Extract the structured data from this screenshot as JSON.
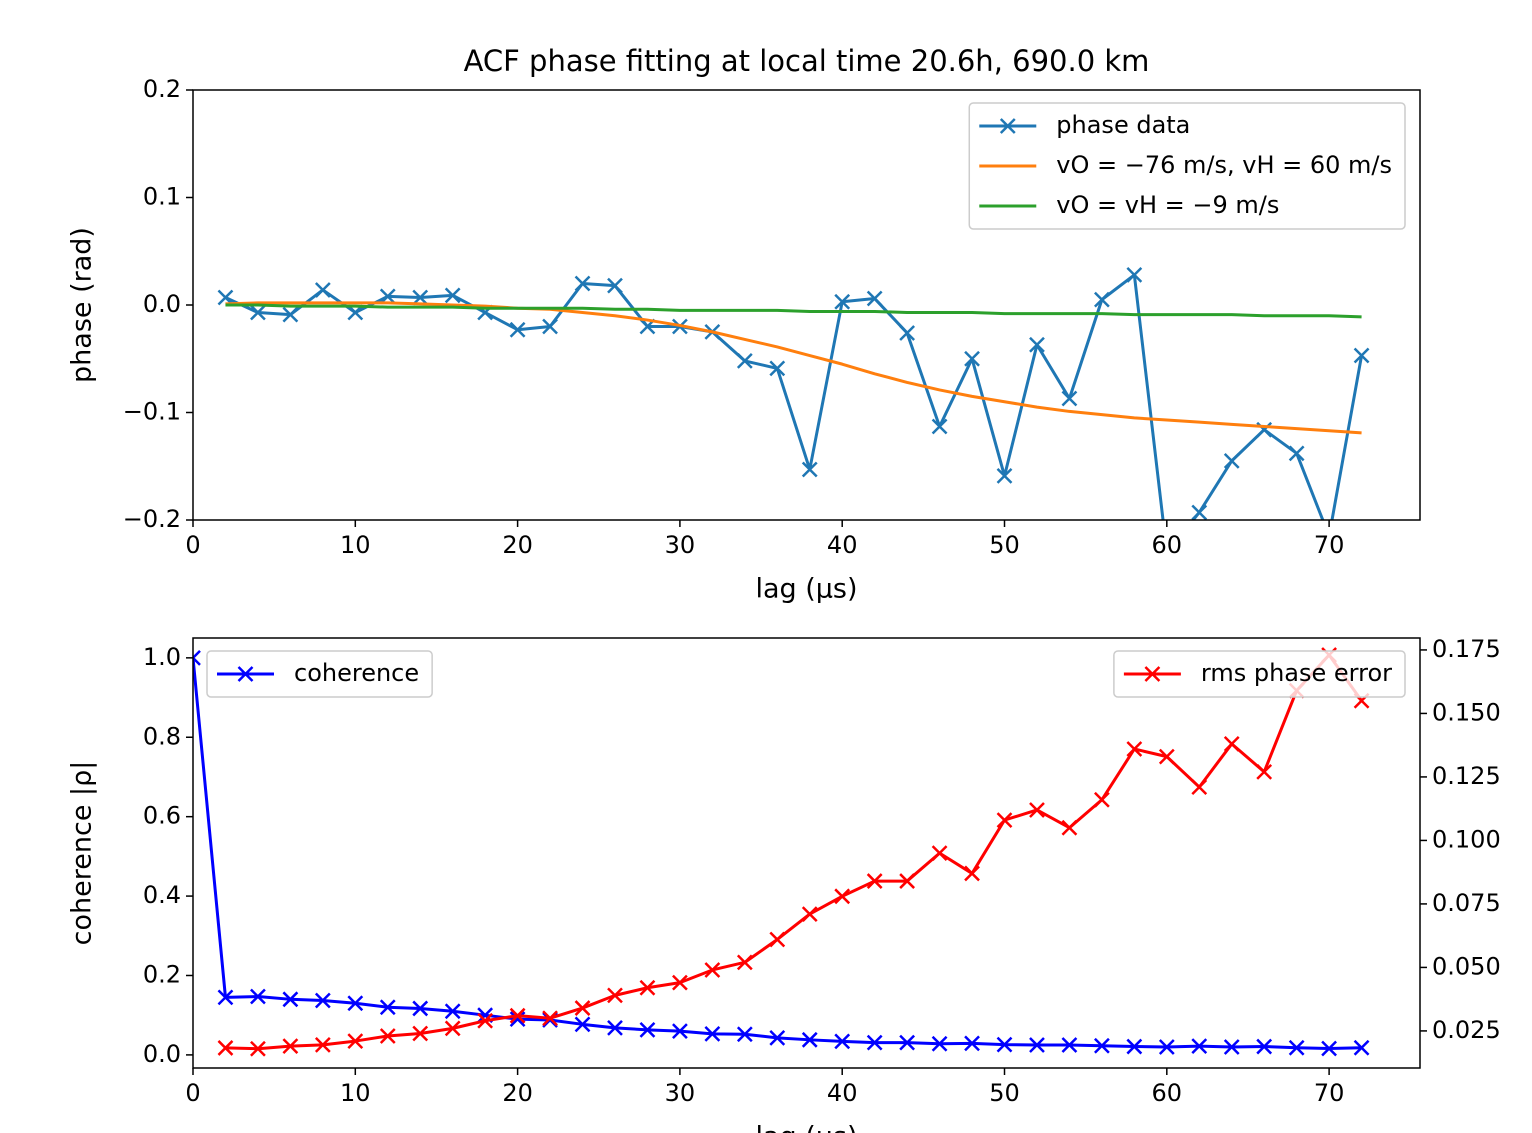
{
  "chart_data": [
    {
      "type": "line",
      "title": "ACF phase fitting at local time 20.6h, 690.0 km",
      "x_label": "lag (μs)",
      "y_label": "phase (rad)",
      "x": [
        2,
        4,
        6,
        8,
        10,
        12,
        14,
        16,
        18,
        20,
        22,
        24,
        26,
        28,
        30,
        32,
        34,
        36,
        38,
        40,
        42,
        44,
        46,
        48,
        50,
        52,
        54,
        56,
        58,
        60,
        62,
        64,
        66,
        68,
        70,
        72
      ],
      "series": [
        {
          "name": "phase data",
          "color": "#1f77b4",
          "marker": "x",
          "values": [
            0.007,
            -0.007,
            -0.009,
            0.014,
            -0.007,
            0.008,
            0.007,
            0.009,
            -0.007,
            -0.023,
            -0.02,
            0.02,
            0.018,
            -0.02,
            -0.02,
            -0.025,
            -0.052,
            -0.059,
            -0.153,
            0.003,
            0.006,
            -0.026,
            -0.113,
            -0.05,
            -0.159,
            -0.037,
            -0.087,
            0.005,
            0.028,
            -0.23,
            -0.193,
            -0.145,
            -0.116,
            -0.138,
            -0.215,
            -0.047
          ]
        },
        {
          "name": "vO = −76 m/s,  vH = 60 m/s",
          "color": "#ff7f0e",
          "values": [
            0.001,
            0.002,
            0.002,
            0.002,
            0.002,
            0.002,
            0.001,
            0.0,
            -0.001,
            -0.003,
            -0.004,
            -0.007,
            -0.01,
            -0.014,
            -0.019,
            -0.025,
            -0.032,
            -0.039,
            -0.047,
            -0.055,
            -0.064,
            -0.072,
            -0.079,
            -0.085,
            -0.09,
            -0.095,
            -0.099,
            -0.102,
            -0.105,
            -0.107,
            -0.109,
            -0.111,
            -0.113,
            -0.115,
            -0.117,
            -0.119
          ]
        },
        {
          "name": "vO = vH = −9 m/s",
          "color": "#2ca02c",
          "values": [
            0.0,
            0.0,
            -0.001,
            -0.001,
            -0.001,
            -0.002,
            -0.002,
            -0.002,
            -0.003,
            -0.003,
            -0.003,
            -0.003,
            -0.004,
            -0.004,
            -0.005,
            -0.005,
            -0.005,
            -0.005,
            -0.006,
            -0.006,
            -0.006,
            -0.007,
            -0.007,
            -0.007,
            -0.008,
            -0.008,
            -0.008,
            -0.008,
            -0.009,
            -0.009,
            -0.009,
            -0.009,
            -0.01,
            -0.01,
            -0.01,
            -0.011
          ]
        }
      ],
      "legend": "upper right",
      "xlim": [
        0,
        75.6
      ],
      "xticks": [
        0,
        10,
        20,
        30,
        40,
        50,
        60,
        70
      ],
      "ylim": [
        -0.2,
        0.2
      ],
      "yticks": [
        {
          "value": -0.2,
          "label": "−0.2"
        },
        {
          "value": -0.1,
          "label": "−0.1"
        },
        {
          "value": 0,
          "label": "0.0"
        },
        0.1,
        0.2
      ]
    },
    {
      "type": "line",
      "x_label": "lag (μs)",
      "y_label": "coherence |ρ|",
      "series": [
        {
          "name": "coherence",
          "color": "#0000ff",
          "marker": "x",
          "legend": "upper left",
          "x": [
            0,
            2,
            4,
            6,
            8,
            10,
            12,
            14,
            16,
            18,
            20,
            22,
            24,
            26,
            28,
            30,
            32,
            34,
            36,
            38,
            40,
            42,
            44,
            46,
            48,
            50,
            52,
            54,
            56,
            58,
            60,
            62,
            64,
            66,
            68,
            70,
            72
          ],
          "values": [
            1.0,
            0.145,
            0.147,
            0.14,
            0.137,
            0.13,
            0.12,
            0.117,
            0.11,
            0.1,
            0.09,
            0.088,
            0.077,
            0.068,
            0.063,
            0.06,
            0.053,
            0.052,
            0.043,
            0.038,
            0.034,
            0.031,
            0.031,
            0.028,
            0.029,
            0.026,
            0.025,
            0.025,
            0.023,
            0.021,
            0.02,
            0.022,
            0.02,
            0.021,
            0.018,
            0.016,
            0.018
          ]
        },
        {
          "name": "rms phase error",
          "color": "#ff0000",
          "marker": "x",
          "legend": "upper right",
          "axis": "y2",
          "x": [
            2,
            4,
            6,
            8,
            10,
            12,
            14,
            16,
            18,
            20,
            22,
            24,
            26,
            28,
            30,
            32,
            34,
            36,
            38,
            40,
            42,
            44,
            46,
            48,
            50,
            52,
            54,
            56,
            58,
            60,
            62,
            64,
            66,
            68,
            70,
            72
          ],
          "values": [
            0.0183,
            0.018,
            0.019,
            0.0195,
            0.021,
            0.023,
            0.024,
            0.026,
            0.029,
            0.031,
            0.03,
            0.034,
            0.039,
            0.042,
            0.044,
            0.049,
            0.052,
            0.061,
            0.071,
            0.078,
            0.084,
            0.084,
            0.095,
            0.087,
            0.108,
            0.112,
            0.105,
            0.116,
            0.136,
            0.133,
            0.121,
            0.138,
            0.127,
            0.159,
            0.173,
            0.155
          ]
        }
      ],
      "xlim": [
        0,
        75.6
      ],
      "xticks": [
        0,
        10,
        20,
        30,
        40,
        50,
        60,
        70
      ],
      "ylim": [
        -0.033,
        1.05
      ],
      "yticks": [
        {
          "value": 0,
          "label": "0.0"
        },
        0.2,
        0.4,
        0.6,
        0.8,
        {
          "value": 1,
          "label": "1.0"
        }
      ],
      "y2lim": [
        0.0104,
        0.1797
      ],
      "y2ticks": [
        0.025,
        {
          "value": 0.05,
          "label": "0.050"
        },
        0.075,
        {
          "value": 0.1,
          "label": "0.100"
        },
        0.125,
        {
          "value": 0.15,
          "label": "0.150"
        },
        0.175
      ]
    }
  ]
}
